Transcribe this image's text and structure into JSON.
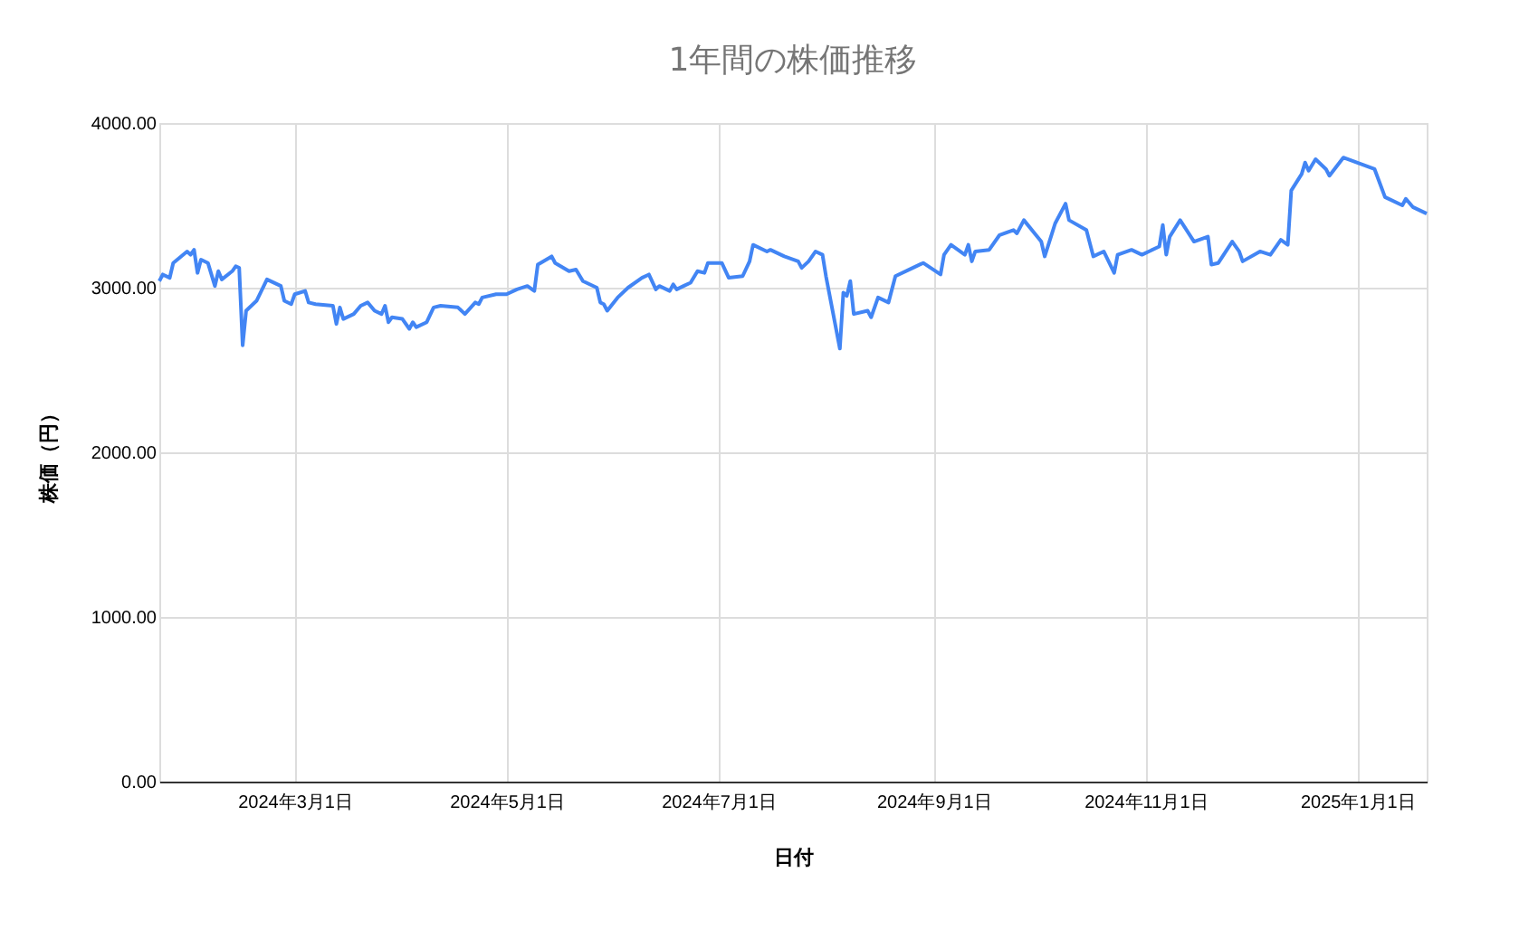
{
  "chart_data": {
    "type": "line",
    "title": "1年間の株価推移",
    "xlabel": "日付",
    "ylabel": "株価（円）",
    "x": [
      "2024-01-22",
      "2024-01-23",
      "2024-01-25",
      "2024-01-26",
      "2024-01-30",
      "2024-01-31",
      "2024-02-01",
      "2024-02-02",
      "2024-02-03",
      "2024-02-05",
      "2024-02-07",
      "2024-02-08",
      "2024-02-09",
      "2024-02-12",
      "2024-02-13",
      "2024-02-14",
      "2024-02-15",
      "2024-02-16",
      "2024-02-19",
      "2024-02-22",
      "2024-02-26",
      "2024-02-27",
      "2024-02-29",
      "2024-03-01",
      "2024-03-04",
      "2024-03-05",
      "2024-03-07",
      "2024-03-12",
      "2024-03-13",
      "2024-03-14",
      "2024-03-15",
      "2024-03-18",
      "2024-03-20",
      "2024-03-22",
      "2024-03-24",
      "2024-03-26",
      "2024-03-27",
      "2024-03-28",
      "2024-03-29",
      "2024-04-01",
      "2024-04-03",
      "2024-04-04",
      "2024-04-05",
      "2024-04-08",
      "2024-04-10",
      "2024-04-12",
      "2024-04-17",
      "2024-04-19",
      "2024-04-22",
      "2024-04-23",
      "2024-04-24",
      "2024-04-28",
      "2024-05-01",
      "2024-05-04",
      "2024-05-07",
      "2024-05-09",
      "2024-05-10",
      "2024-05-14",
      "2024-05-15",
      "2024-05-19",
      "2024-05-21",
      "2024-05-23",
      "2024-05-27",
      "2024-05-28",
      "2024-05-29",
      "2024-05-30",
      "2024-06-02",
      "2024-06-05",
      "2024-06-09",
      "2024-06-11",
      "2024-06-13",
      "2024-06-14",
      "2024-06-17",
      "2024-06-18",
      "2024-06-19",
      "2024-06-21",
      "2024-06-23",
      "2024-06-25",
      "2024-06-27",
      "2024-06-28",
      "2024-07-02",
      "2024-07-04",
      "2024-07-08",
      "2024-07-10",
      "2024-07-11",
      "2024-07-15",
      "2024-07-16",
      "2024-07-20",
      "2024-07-24",
      "2024-07-25",
      "2024-07-27",
      "2024-07-29",
      "2024-07-31",
      "2024-08-01",
      "2024-08-05",
      "2024-08-06",
      "2024-08-07",
      "2024-08-08",
      "2024-08-09",
      "2024-08-13",
      "2024-08-14",
      "2024-08-16",
      "2024-08-19",
      "2024-08-21",
      "2024-08-26",
      "2024-08-29",
      "2024-09-03",
      "2024-09-04",
      "2024-09-06",
      "2024-09-10",
      "2024-09-11",
      "2024-09-12",
      "2024-09-13",
      "2024-09-17",
      "2024-09-20",
      "2024-09-24",
      "2024-09-25",
      "2024-09-27",
      "2024-10-02",
      "2024-10-03",
      "2024-10-06",
      "2024-10-09",
      "2024-10-10",
      "2024-10-15",
      "2024-10-17",
      "2024-10-20",
      "2024-10-23",
      "2024-10-24",
      "2024-10-28",
      "2024-10-31",
      "2024-11-05",
      "2024-11-06",
      "2024-11-07",
      "2024-11-08",
      "2024-11-11",
      "2024-11-15",
      "2024-11-19",
      "2024-11-20",
      "2024-11-22",
      "2024-11-26",
      "2024-11-28",
      "2024-11-29",
      "2024-12-04",
      "2024-12-07",
      "2024-12-10",
      "2024-12-12",
      "2024-12-13",
      "2024-12-16",
      "2024-12-17",
      "2024-12-18",
      "2024-12-20",
      "2024-12-23",
      "2024-12-24",
      "2024-12-28",
      "2025-01-06",
      "2025-01-09",
      "2025-01-14",
      "2025-01-15",
      "2025-01-17",
      "2025-01-21"
    ],
    "series": [
      {
        "color": "#4285f4",
        "values": [
          3040,
          3080,
          3060,
          3150,
          3220,
          3200,
          3230,
          3090,
          3170,
          3150,
          3010,
          3100,
          3050,
          3100,
          3130,
          3120,
          2650,
          2860,
          2920,
          3050,
          3010,
          2920,
          2900,
          2960,
          2980,
          2910,
          2900,
          2890,
          2780,
          2880,
          2810,
          2840,
          2890,
          2910,
          2860,
          2840,
          2890,
          2790,
          2820,
          2810,
          2750,
          2790,
          2760,
          2790,
          2880,
          2890,
          2880,
          2840,
          2910,
          2900,
          2940,
          2960,
          2960,
          2990,
          3010,
          2980,
          3140,
          3190,
          3150,
          3100,
          3110,
          3040,
          3000,
          2910,
          2900,
          2860,
          2940,
          3000,
          3060,
          3080,
          2990,
          3010,
          2980,
          3020,
          2990,
          3010,
          3030,
          3100,
          3090,
          3150,
          3150,
          3060,
          3070,
          3160,
          3260,
          3220,
          3230,
          3190,
          3160,
          3120,
          3160,
          3220,
          3200,
          3070,
          2630,
          2970,
          2950,
          3040,
          2840,
          2860,
          2820,
          2940,
          2910,
          3070,
          3120,
          3150,
          3080,
          3200,
          3260,
          3200,
          3260,
          3160,
          3220,
          3230,
          3320,
          3350,
          3330,
          3410,
          3280,
          3190,
          3390,
          3510,
          3410,
          3350,
          3190,
          3220,
          3090,
          3200,
          3230,
          3200,
          3250,
          3380,
          3200,
          3310,
          3410,
          3280,
          3310,
          3140,
          3150,
          3280,
          3220,
          3160,
          3220,
          3200,
          3290,
          3260,
          3590,
          3690,
          3760,
          3710,
          3780,
          3720,
          3680,
          3790,
          3720,
          3550,
          3500,
          3540,
          3490,
          3450
        ]
      }
    ],
    "xlim": [
      "2024-01-22",
      "2025-01-21"
    ],
    "xticks": [
      {
        "value": "2024-03-01",
        "label": "2024年3月1日"
      },
      {
        "value": "2024-05-01",
        "label": "2024年5月1日"
      },
      {
        "value": "2024-07-01",
        "label": "2024年7月1日"
      },
      {
        "value": "2024-09-01",
        "label": "2024年9月1日"
      },
      {
        "value": "2024-11-01",
        "label": "2024年11月1日"
      },
      {
        "value": "2025-01-01",
        "label": "2025年1月1日"
      }
    ],
    "ylim": [
      0,
      4000
    ],
    "yticks": [
      {
        "value": 0,
        "label": "0.00"
      },
      {
        "value": 1000,
        "label": "1000.00"
      },
      {
        "value": 2000,
        "label": "2000.00"
      },
      {
        "value": 3000,
        "label": "3000.00"
      },
      {
        "value": 4000,
        "label": "4000.00"
      }
    ],
    "grid": true,
    "legend": false,
    "marker": "none",
    "line_style": "solid"
  }
}
